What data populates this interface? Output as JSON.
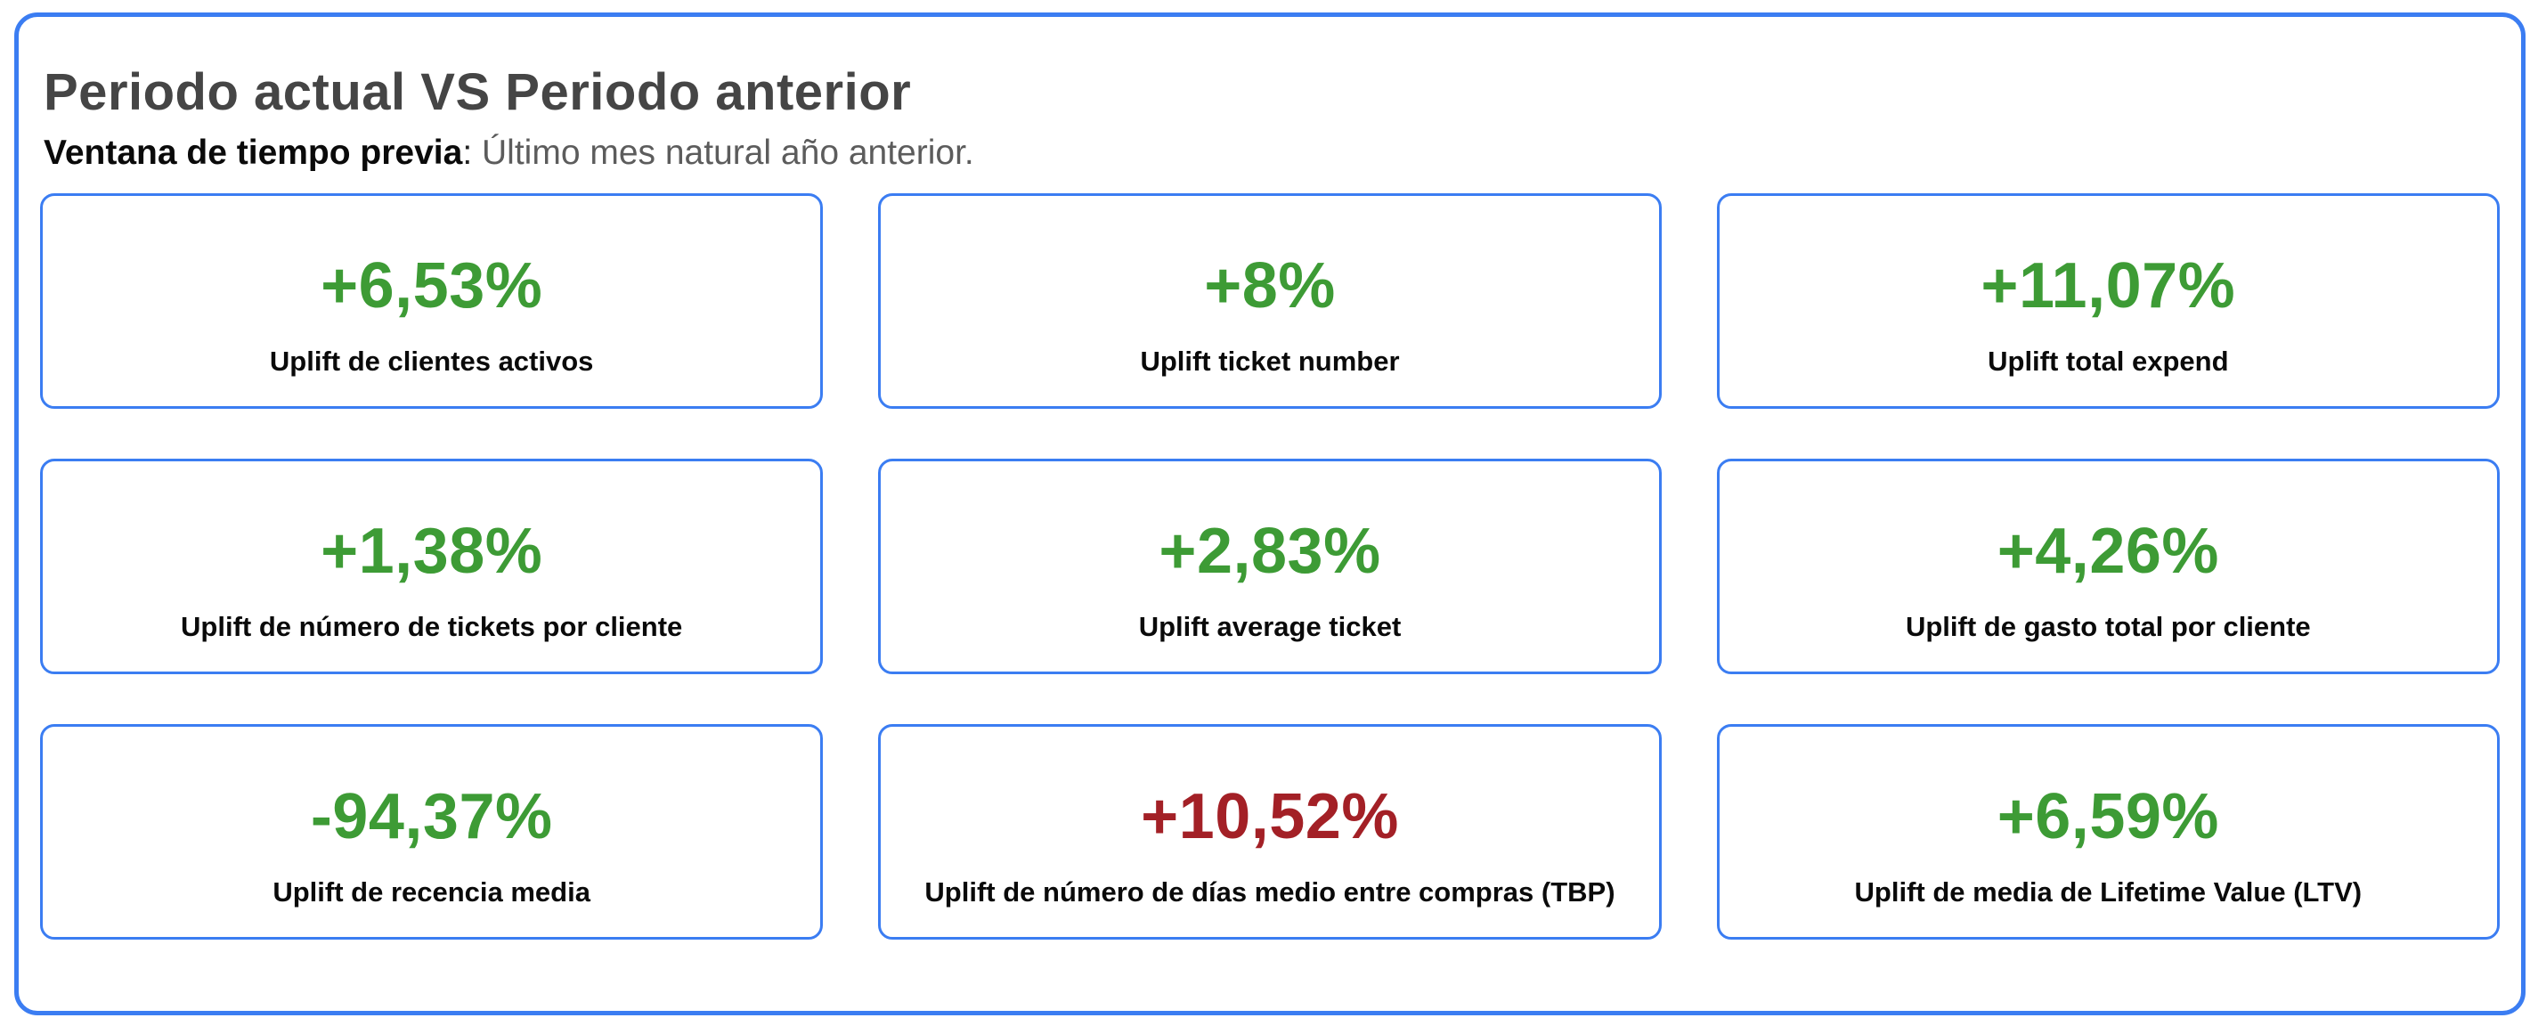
{
  "panel": {
    "title": "Periodo actual VS Periodo anterior",
    "subtitle_bold": "Ventana de tiempo previa",
    "subtitle_colon": ": ",
    "subtitle_rest": "Último mes natural año anterior."
  },
  "colors": {
    "positive": "#3d9b35",
    "negative": "#a32026",
    "border_blue": "#3b7df2"
  },
  "cards": [
    {
      "value": "+6,53%",
      "label": "Uplift de clientes activos",
      "sentiment": "positive"
    },
    {
      "value": "+8%",
      "label": "Uplift ticket number",
      "sentiment": "positive"
    },
    {
      "value": "+11,07%",
      "label": "Uplift total expend",
      "sentiment": "positive"
    },
    {
      "value": "+1,38%",
      "label": "Uplift de número de tickets por cliente",
      "sentiment": "positive"
    },
    {
      "value": "+2,83%",
      "label": "Uplift average ticket",
      "sentiment": "positive"
    },
    {
      "value": "+4,26%",
      "label": "Uplift de gasto total por cliente",
      "sentiment": "positive"
    },
    {
      "value": "-94,37%",
      "label": "Uplift de recencia media",
      "sentiment": "positive"
    },
    {
      "value": "+10,52%",
      "label": "Uplift de número de días medio entre compras (TBP)",
      "sentiment": "negative"
    },
    {
      "value": "+6,59%",
      "label": "Uplift de media de Lifetime Value (LTV)",
      "sentiment": "positive"
    }
  ]
}
